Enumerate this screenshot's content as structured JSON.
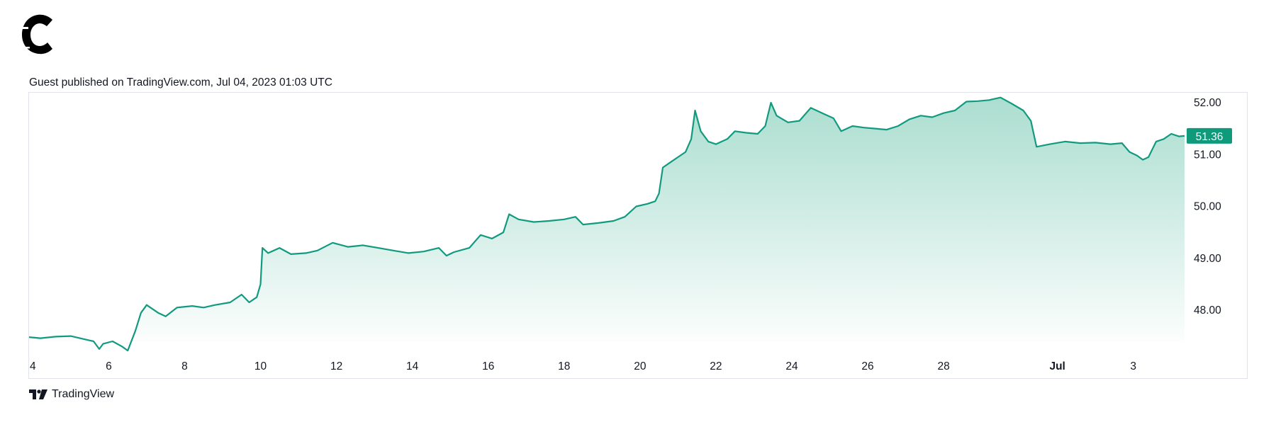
{
  "header": {
    "logo": "c-brand-icon",
    "published_line": "Guest published on TradingView.com, Jul 04, 2023 01:03 UTC"
  },
  "footer": {
    "brand_icon": "tradingview-icon",
    "brand": "TradingView"
  },
  "colors": {
    "line": "#129a80",
    "fill_top": "#a7dccd",
    "fill_bottom": "#ffffff",
    "badge": "#0f9a7c"
  },
  "chart_data": {
    "type": "area",
    "title": "",
    "xlabel": "",
    "ylabel": "",
    "ylim": [
      47.2,
      52.2
    ],
    "y_ticks": [
      "52.00",
      "51.00",
      "50.00",
      "49.00",
      "48.00"
    ],
    "x_ticks": [
      {
        "day": 4,
        "label": "4"
      },
      {
        "day": 6,
        "label": "6"
      },
      {
        "day": 8,
        "label": "8"
      },
      {
        "day": 10,
        "label": "10"
      },
      {
        "day": 12,
        "label": "12"
      },
      {
        "day": 14,
        "label": "14"
      },
      {
        "day": 16,
        "label": "16"
      },
      {
        "day": 18,
        "label": "18"
      },
      {
        "day": 20,
        "label": "20"
      },
      {
        "day": 22,
        "label": "22"
      },
      {
        "day": 24,
        "label": "24"
      },
      {
        "day": 26,
        "label": "26"
      },
      {
        "day": 28,
        "label": "28"
      },
      {
        "day": 31,
        "label": "Jul",
        "bold": true
      },
      {
        "day": 33,
        "label": "3"
      }
    ],
    "x_range": [
      3.9,
      34.35
    ],
    "last_value_label": "51.36",
    "grid": false,
    "series": [
      {
        "points": [
          [
            3.9,
            47.48
          ],
          [
            4.2,
            47.46
          ],
          [
            4.6,
            47.49
          ],
          [
            5.0,
            47.5
          ],
          [
            5.3,
            47.45
          ],
          [
            5.6,
            47.4
          ],
          [
            5.75,
            47.25
          ],
          [
            5.85,
            47.35
          ],
          [
            6.1,
            47.4
          ],
          [
            6.35,
            47.3
          ],
          [
            6.5,
            47.22
          ],
          [
            6.7,
            47.6
          ],
          [
            6.85,
            47.95
          ],
          [
            7.0,
            48.1
          ],
          [
            7.3,
            47.95
          ],
          [
            7.5,
            47.88
          ],
          [
            7.8,
            48.05
          ],
          [
            8.2,
            48.08
          ],
          [
            8.5,
            48.05
          ],
          [
            8.8,
            48.1
          ],
          [
            9.2,
            48.15
          ],
          [
            9.5,
            48.3
          ],
          [
            9.7,
            48.15
          ],
          [
            9.9,
            48.25
          ],
          [
            10.0,
            48.5
          ],
          [
            10.05,
            49.2
          ],
          [
            10.2,
            49.1
          ],
          [
            10.5,
            49.2
          ],
          [
            10.8,
            49.08
          ],
          [
            11.2,
            49.1
          ],
          [
            11.5,
            49.15
          ],
          [
            11.9,
            49.3
          ],
          [
            12.3,
            49.22
          ],
          [
            12.7,
            49.25
          ],
          [
            13.1,
            49.2
          ],
          [
            13.5,
            49.15
          ],
          [
            13.9,
            49.1
          ],
          [
            14.3,
            49.13
          ],
          [
            14.7,
            49.2
          ],
          [
            14.9,
            49.05
          ],
          [
            15.1,
            49.12
          ],
          [
            15.5,
            49.2
          ],
          [
            15.8,
            49.45
          ],
          [
            16.1,
            49.38
          ],
          [
            16.4,
            49.5
          ],
          [
            16.55,
            49.85
          ],
          [
            16.8,
            49.75
          ],
          [
            17.2,
            49.7
          ],
          [
            17.6,
            49.72
          ],
          [
            18.0,
            49.75
          ],
          [
            18.3,
            49.8
          ],
          [
            18.5,
            49.65
          ],
          [
            18.9,
            49.68
          ],
          [
            19.3,
            49.72
          ],
          [
            19.6,
            49.8
          ],
          [
            19.9,
            50.0
          ],
          [
            20.2,
            50.05
          ],
          [
            20.4,
            50.1
          ],
          [
            20.5,
            50.25
          ],
          [
            20.6,
            50.75
          ],
          [
            20.8,
            50.85
          ],
          [
            21.0,
            50.95
          ],
          [
            21.2,
            51.05
          ],
          [
            21.35,
            51.3
          ],
          [
            21.45,
            51.85
          ],
          [
            21.6,
            51.45
          ],
          [
            21.8,
            51.25
          ],
          [
            22.0,
            51.2
          ],
          [
            22.3,
            51.3
          ],
          [
            22.5,
            51.45
          ],
          [
            22.8,
            51.42
          ],
          [
            23.1,
            51.4
          ],
          [
            23.3,
            51.55
          ],
          [
            23.45,
            52.0
          ],
          [
            23.6,
            51.75
          ],
          [
            23.9,
            51.62
          ],
          [
            24.2,
            51.65
          ],
          [
            24.5,
            51.9
          ],
          [
            24.8,
            51.8
          ],
          [
            25.1,
            51.7
          ],
          [
            25.3,
            51.45
          ],
          [
            25.6,
            51.55
          ],
          [
            25.9,
            51.52
          ],
          [
            26.2,
            51.5
          ],
          [
            26.5,
            51.48
          ],
          [
            26.8,
            51.55
          ],
          [
            27.1,
            51.68
          ],
          [
            27.4,
            51.75
          ],
          [
            27.7,
            51.72
          ],
          [
            28.0,
            51.8
          ],
          [
            28.3,
            51.85
          ],
          [
            28.6,
            52.02
          ],
          [
            28.9,
            52.03
          ],
          [
            29.2,
            52.05
          ],
          [
            29.5,
            52.1
          ],
          [
            29.8,
            51.98
          ],
          [
            30.1,
            51.85
          ],
          [
            30.3,
            51.65
          ],
          [
            30.45,
            51.15
          ],
          [
            30.8,
            51.2
          ],
          [
            31.2,
            51.25
          ],
          [
            31.6,
            51.22
          ],
          [
            32.0,
            51.23
          ],
          [
            32.4,
            51.2
          ],
          [
            32.7,
            51.22
          ],
          [
            32.9,
            51.05
          ],
          [
            33.1,
            50.98
          ],
          [
            33.25,
            50.9
          ],
          [
            33.4,
            50.95
          ],
          [
            33.6,
            51.25
          ],
          [
            33.8,
            51.3
          ],
          [
            34.0,
            51.4
          ],
          [
            34.2,
            51.35
          ],
          [
            34.35,
            51.36
          ]
        ]
      }
    ]
  }
}
